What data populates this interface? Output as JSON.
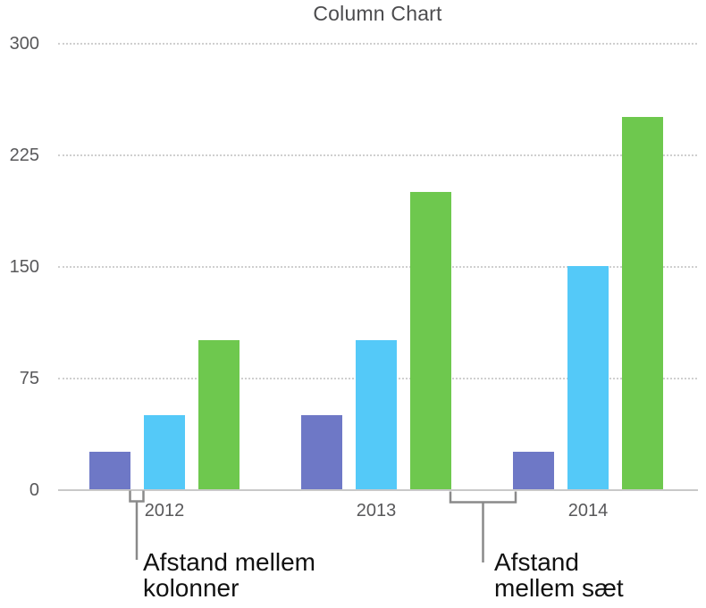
{
  "chart_data": {
    "type": "bar",
    "title": "Column Chart",
    "categories": [
      "2012",
      "2013",
      "2014"
    ],
    "series": [
      {
        "color": "#6e78c6",
        "values": [
          25,
          50,
          25
        ]
      },
      {
        "color": "#54c9f8",
        "values": [
          50,
          100,
          150
        ]
      },
      {
        "color": "#6ec84e",
        "values": [
          100,
          200,
          250
        ]
      }
    ],
    "xlabel": "",
    "ylabel": "",
    "ylim": [
      0,
      300
    ],
    "y_ticks": [
      0,
      75,
      150,
      225,
      300
    ],
    "grid": "horizontal-dotted",
    "legend": "none"
  },
  "colors": {
    "series_purple": "#6e78c6",
    "series_cyan": "#54c9f8",
    "series_green": "#6ec84e",
    "grid_line": "#cfcfcf",
    "axis_line": "#c9c9c9",
    "tick_text": "#58585a",
    "title_text": "#4c4c4e",
    "annotation_text": "#111111",
    "callout_line": "#8a8a8a"
  },
  "annotations": {
    "column_gap": {
      "line1": "Afstand mellem",
      "line2": "kolonner"
    },
    "set_gap": {
      "line1": "Afstand",
      "line2": "mellem sæt"
    }
  }
}
